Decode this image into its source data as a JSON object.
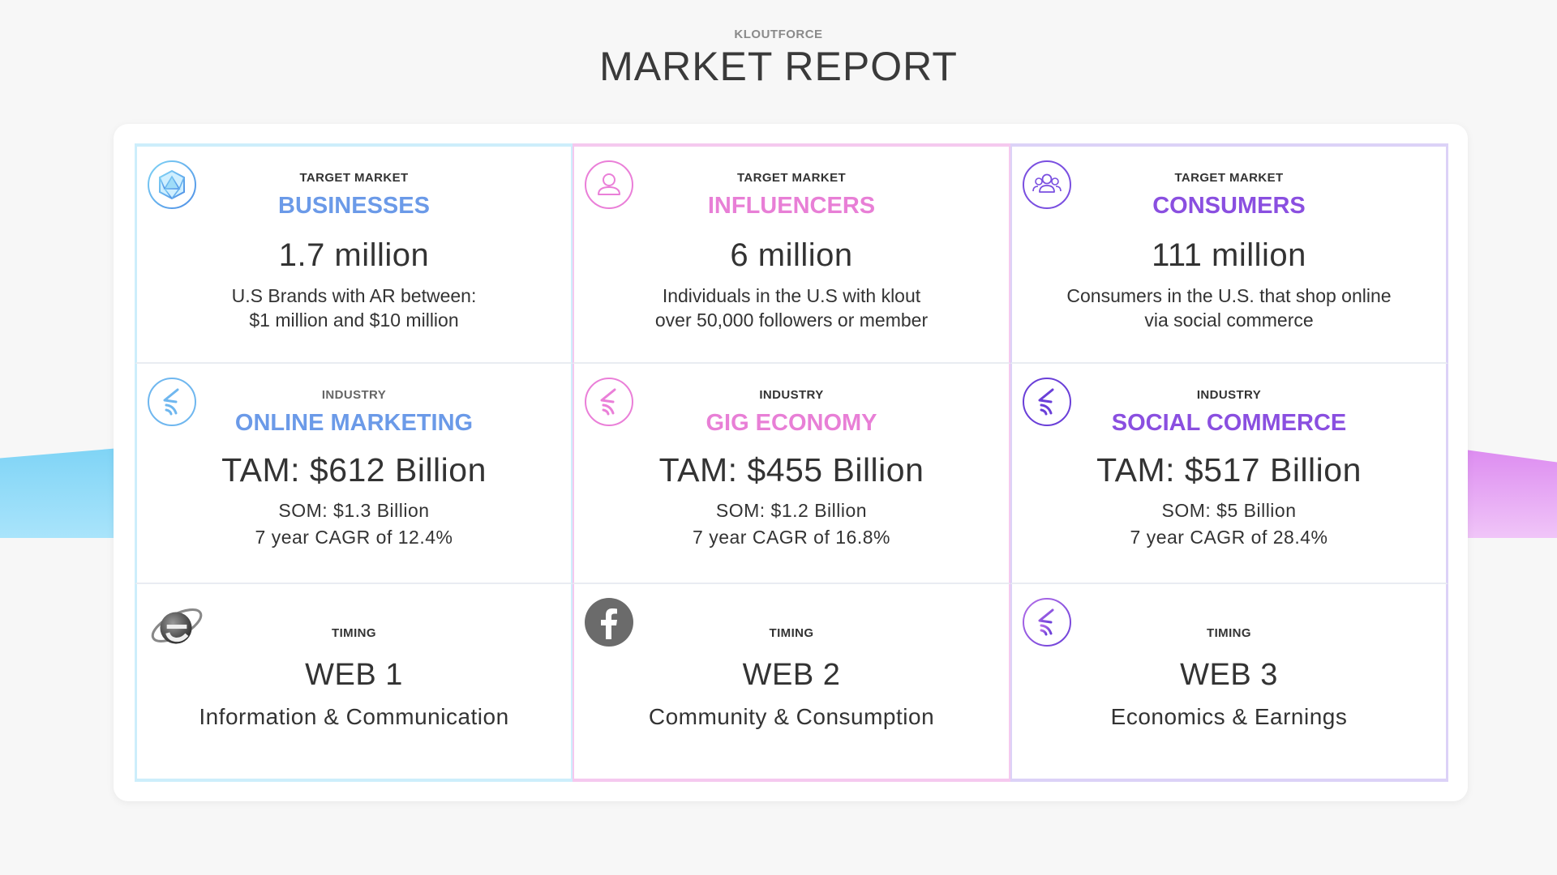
{
  "header": {
    "brand": "KLOUTFORCE",
    "title": "MARKET REPORT"
  },
  "colors": {
    "blue": "#6b9ae8",
    "pink": "#e87fd6",
    "purple": "#8a4fe0"
  },
  "target_market": [
    {
      "label": "TARGET MARKET",
      "name": "BUSINESSES",
      "value": "1.7 million",
      "line1": "U.S Brands with AR between:",
      "line2": "$1 million and $10 million",
      "icon": "polyhedron-icon"
    },
    {
      "label": "TARGET MARKET",
      "name": "INFLUENCERS",
      "value": "6 million",
      "line1": "Individuals in the U.S  with klout",
      "line2": "over 50,000 followers or member",
      "icon": "person-icon"
    },
    {
      "label": "TARGET MARKET",
      "name": "CONSUMERS",
      "value": "111 million",
      "line1": "Consumers in the U.S. that shop online",
      "line2": "via social commerce",
      "icon": "people-group-icon"
    }
  ],
  "industry": [
    {
      "label": "INDUSTRY",
      "name": "ONLINE MARKETING",
      "tam": "TAM: $612 Billion",
      "som": "SOM: $1.3 Billion",
      "cagr": "7 year CAGR of 12.4%",
      "icon": "kloutforce-logo-icon"
    },
    {
      "label": "INDUSTRY",
      "name": "GIG ECONOMY",
      "tam": "TAM: $455 Billion",
      "som": "SOM: $1.2 Billion",
      "cagr": "7 year CAGR of 16.8%",
      "icon": "kloutforce-logo-icon"
    },
    {
      "label": "INDUSTRY",
      "name": "SOCIAL COMMERCE",
      "tam": "TAM: $517 Billion",
      "som": "SOM: $5 Billion",
      "cagr": "7 year CAGR of 28.4%",
      "icon": "kloutforce-logo-icon"
    }
  ],
  "timing": [
    {
      "label": "TIMING",
      "name": "WEB 1",
      "desc": "Information & Communication",
      "icon": "internet-explorer-icon"
    },
    {
      "label": "TIMING",
      "name": "WEB 2",
      "desc": "Community & Consumption",
      "icon": "facebook-icon"
    },
    {
      "label": "TIMING",
      "name": "WEB 3",
      "desc": "Economics & Earnings",
      "icon": "kloutforce-logo-icon"
    }
  ]
}
